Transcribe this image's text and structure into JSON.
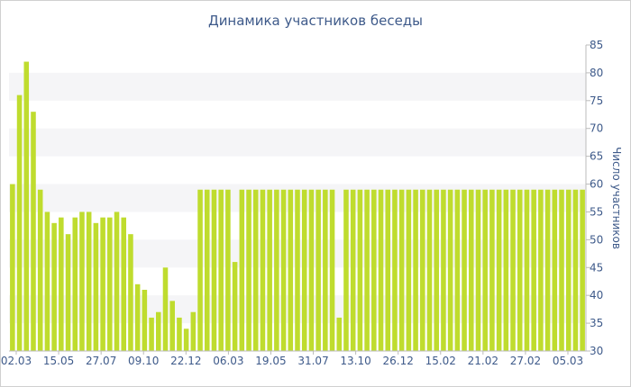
{
  "chart_data": {
    "type": "bar",
    "title": "Динамика участников беседы",
    "ylabel": "Число участников",
    "xlabel": "",
    "ylim": [
      30,
      85
    ],
    "y_ticks": [
      30,
      35,
      40,
      45,
      50,
      55,
      60,
      65,
      70,
      75,
      80,
      85
    ],
    "y_axis_position": "right",
    "grid": "alternating horizontal bands",
    "bar_color": "#bfdc2e",
    "band_color": "#f5f5f7",
    "x_tick_labels": [
      "02.03",
      "15.05",
      "27.07",
      "09.10",
      "22.12",
      "06.03",
      "19.05",
      "31.07",
      "13.10",
      "26.12",
      "15.02",
      "21.02",
      "27.02",
      "05.03"
    ],
    "values": [
      60,
      76,
      82,
      73,
      59,
      55,
      53,
      54,
      51,
      54,
      55,
      55,
      53,
      54,
      54,
      55,
      54,
      51,
      42,
      41,
      36,
      37,
      45,
      39,
      36,
      34,
      37,
      59,
      59,
      59,
      59,
      59,
      46,
      59,
      59,
      59,
      59,
      59,
      59,
      59,
      59,
      59,
      59,
      59,
      59,
      59,
      59,
      36,
      59,
      59,
      59,
      59,
      59,
      59,
      59,
      59,
      59,
      59,
      59,
      59,
      59,
      59,
      59,
      59,
      59,
      59,
      59,
      59,
      59,
      59,
      59,
      59,
      59,
      59,
      59,
      59,
      59,
      59,
      59,
      59,
      59,
      59,
      59
    ]
  }
}
